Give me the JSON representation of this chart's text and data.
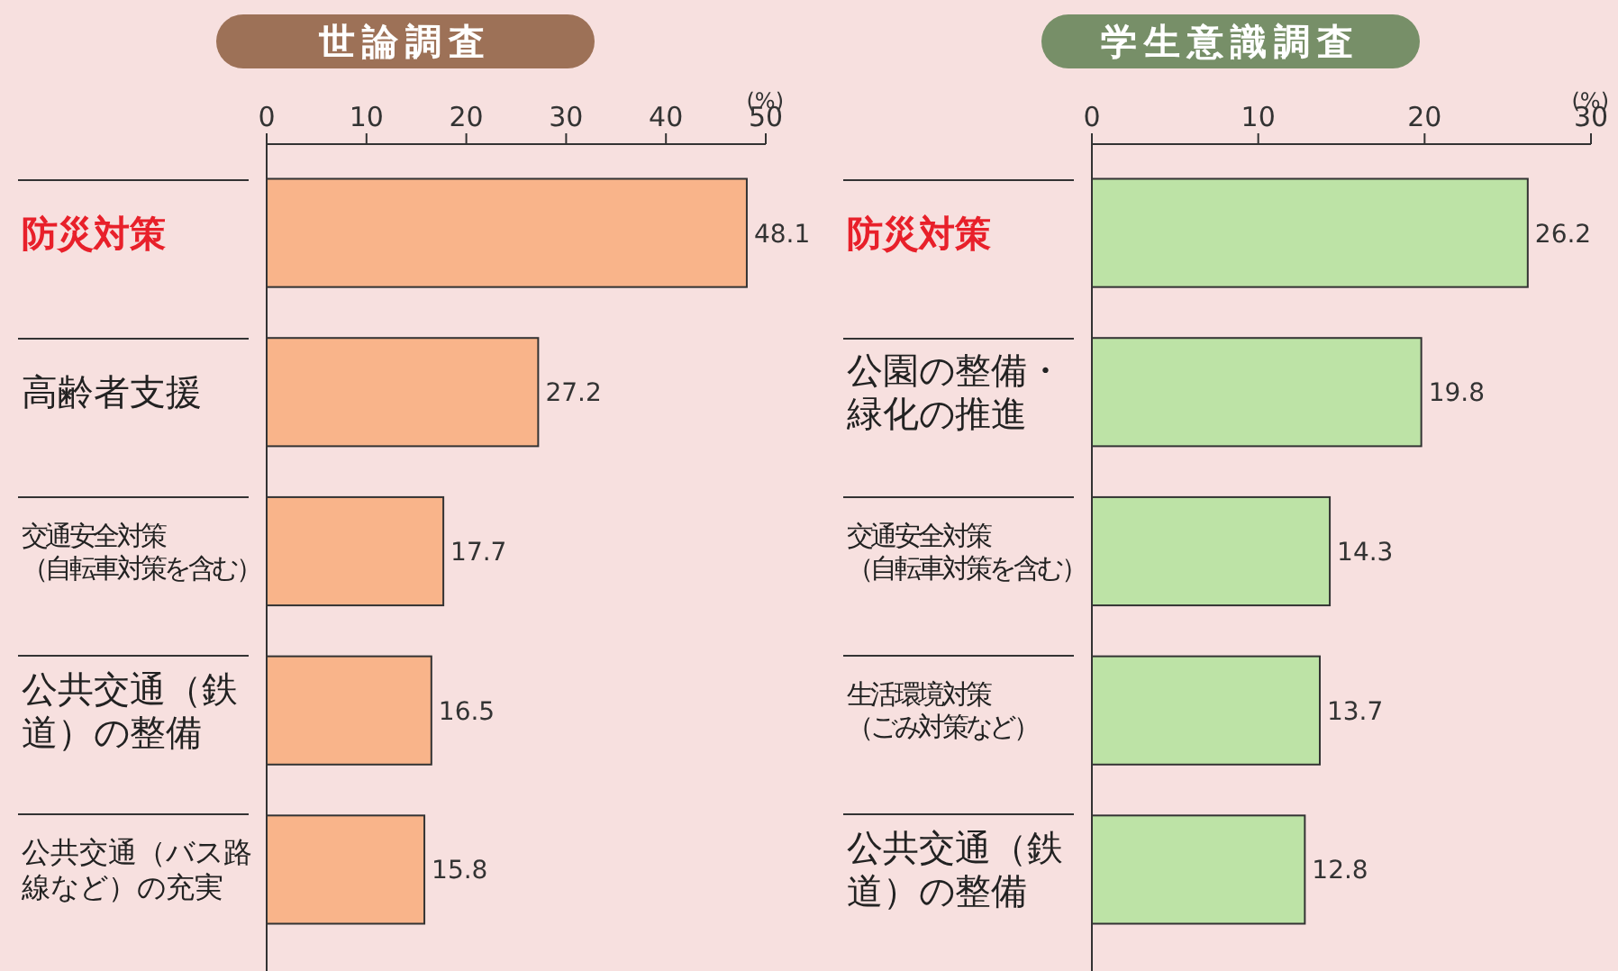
{
  "chart_data": [
    {
      "type": "bar",
      "orientation": "horizontal",
      "title": "世論調査",
      "xlabel": "(%)",
      "categories": [
        "防災対策",
        "高齢者支援",
        "交通安全対策（自転車対策を含む）",
        "公共交通（鉄道）の整備",
        "公共交通（バス路線など）の充実"
      ],
      "series": [
        {
          "color": "#f9b48a",
          "values": [
            48.1,
            27.2,
            17.7,
            16.5,
            15.8
          ]
        }
      ],
      "xlim": [
        0,
        50
      ],
      "xticks": [
        0,
        10,
        20,
        30,
        40,
        50
      ],
      "data_labels": true,
      "grid": false,
      "legend": false
    },
    {
      "type": "bar",
      "orientation": "horizontal",
      "title": "学生意識調査",
      "xlabel": "(%)",
      "categories": [
        "防災対策",
        "公園の整備・緑化の推進",
        "交通安全対策（自転車対策を含む）",
        "生活環境対策（ごみ対策など）",
        "公共交通（鉄道）の整備"
      ],
      "series": [
        {
          "color": "#bde3a6",
          "values": [
            26.2,
            19.8,
            14.3,
            13.7,
            12.8
          ]
        }
      ],
      "xlim": [
        0,
        30
      ],
      "xticks": [
        0,
        10,
        20,
        30
      ],
      "data_labels": true,
      "grid": false,
      "legend": false
    }
  ]
}
